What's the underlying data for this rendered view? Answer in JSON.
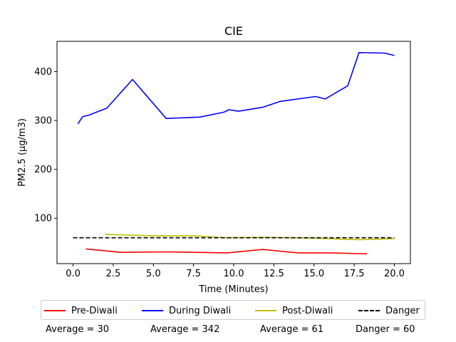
{
  "chart_data": {
    "type": "line",
    "title": "CIE",
    "xlabel": "Time (Minutes)",
    "ylabel": "PM2.5 (µg/m3)",
    "xlim": [
      -1.0,
      21.0
    ],
    "ylim": [
      7,
      462
    ],
    "xticks": [
      0.0,
      2.5,
      5.0,
      7.5,
      10.0,
      12.5,
      15.0,
      17.5,
      20.0
    ],
    "xtick_labels": [
      "0.0",
      "2.5",
      "5.0",
      "7.5",
      "10.0",
      "12.5",
      "15.0",
      "17.5",
      "20.0"
    ],
    "yticks": [
      100,
      200,
      300,
      400
    ],
    "ytick_labels": [
      "100",
      "200",
      "300",
      "400"
    ],
    "grid": false,
    "legend_position": "bottom",
    "series": [
      {
        "name": "Pre-Diwali",
        "color": "#ff0000",
        "dash": "solid",
        "x": [
          0.8,
          3.0,
          6.0,
          9.6,
          11.8,
          14.0,
          16.0,
          18.3
        ],
        "y": [
          37,
          30,
          31,
          29,
          36,
          29,
          29,
          27
        ]
      },
      {
        "name": "During Diwali",
        "color": "#0000ff",
        "dash": "solid",
        "x": [
          0.3,
          0.6,
          1.0,
          1.3,
          2.1,
          3.7,
          5.8,
          7.9,
          9.4,
          9.7,
          10.3,
          11.8,
          12.9,
          15.1,
          15.7,
          17.1,
          17.8,
          19.4,
          20.0
        ],
        "y": [
          293,
          308,
          311,
          315,
          325,
          384,
          304,
          307,
          317,
          322,
          319,
          327,
          339,
          349,
          344,
          371,
          439,
          438,
          433
        ]
      },
      {
        "name": "Post-Diwali",
        "color": "#bfbf00",
        "dash": "solid",
        "x": [
          2.0,
          5.0,
          7.5,
          9.5,
          12.0,
          15.0,
          17.8,
          20.0
        ],
        "y": [
          67,
          64,
          64,
          60,
          61,
          59,
          56,
          58
        ]
      },
      {
        "name": "Danger",
        "color": "#000000",
        "dash": "dashed",
        "x": [
          0.0,
          20.0
        ],
        "y": [
          60,
          60
        ]
      }
    ],
    "averages": [
      {
        "label": "Average = 30"
      },
      {
        "label": "Average = 342"
      },
      {
        "label": "Average = 61"
      },
      {
        "label": "Danger = 60"
      }
    ]
  }
}
